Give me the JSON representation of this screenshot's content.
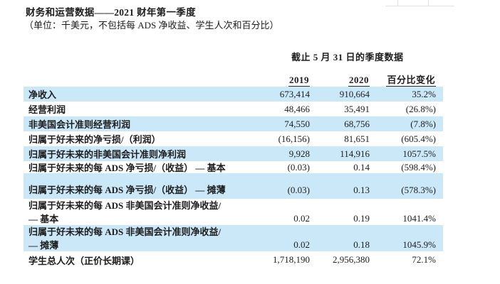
{
  "page": {
    "title": "财务和运营数据——2021 财年第一季度",
    "subtitle": "（单位：千美元，不包括每 ADS 净收益、学生人次和百分比）"
  },
  "table": {
    "period_header": "截止 5 月 31 日的季度数据",
    "columns": [
      "2019",
      "2020",
      "百分比变化"
    ],
    "highlight_color": "#cbe8f8",
    "rows": [
      {
        "label": "净收入",
        "v2019": "673,414",
        "v2020": "910,664",
        "pct": "35.2%",
        "highlight": true
      },
      {
        "label": "经营利润",
        "v2019": "48,466",
        "v2020": "35,491",
        "pct": "(26.8%)",
        "highlight": false
      },
      {
        "label": "非美国会计准则经营利润",
        "v2019": "74,550",
        "v2020": "68,756",
        "pct": "(7.8%)",
        "highlight": true
      },
      {
        "label": "归属于好未来的净亏损/（利润）",
        "v2019": "(16,156)",
        "v2020": "81,651",
        "pct": "(605.4%)",
        "highlight": false
      },
      {
        "label": "归属于好未来的非美国会计准则净利润",
        "v2019": "9,928",
        "v2020": "114,916",
        "pct": "1057.5%",
        "highlight": true
      },
      {
        "label": "归属于好未来的每 ADS 净亏损/（收益） — 基本",
        "v2019": "(0.03)",
        "v2020": "0.14",
        "pct": "(598.4%)",
        "highlight": false,
        "variant": "short"
      },
      {
        "label": "归属于好未来的每 ADS 净亏损/（收益） — 摊薄",
        "v2019": "(0.03)",
        "v2020": "0.13",
        "pct": "(578.3%)",
        "highlight": true,
        "variant": "tall"
      },
      {
        "label": "归属于好未来的每 ADS 非美国会计准则净收益/",
        "label2": "— 基本",
        "v2019": "0.02",
        "v2020": "0.19",
        "pct": "1041.4%",
        "highlight": false,
        "variant": "twoline"
      },
      {
        "label": "归属于好未来的每 ADS 非美国会计准则净收益/",
        "label2": "— 摊薄",
        "v2019": "0.02",
        "v2020": "0.18",
        "pct": "1045.9%",
        "highlight": true,
        "variant": "twoline"
      },
      {
        "label": "学生总人次（正价长期课）",
        "v2019": "1,718,190",
        "v2020": "2,956,380",
        "pct": "72.1%",
        "highlight": false,
        "variant": "last"
      }
    ]
  }
}
